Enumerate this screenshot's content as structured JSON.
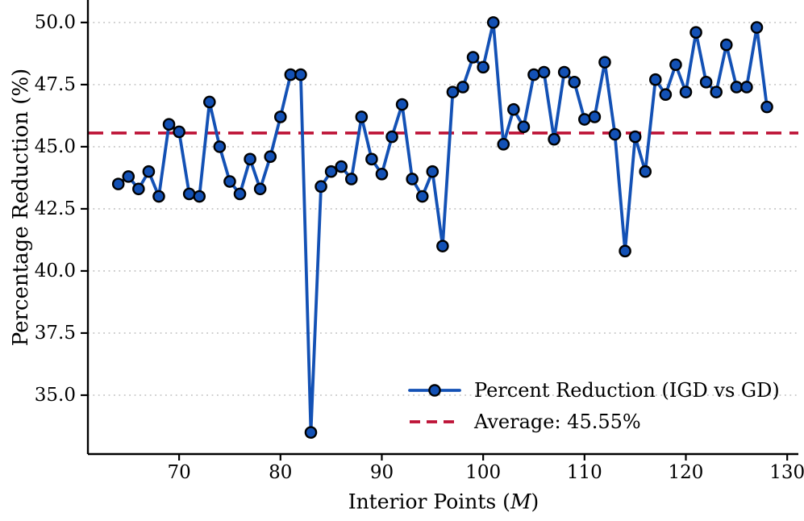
{
  "chart_data": {
    "type": "line",
    "title": "",
    "xlabel": "Interior Points (M)",
    "xlabel_prefix": "Interior Points (",
    "xlabel_var": "M",
    "xlabel_suffix": ")",
    "ylabel": "Percentage Reduction (%)",
    "x": [
      64,
      65,
      66,
      67,
      68,
      69,
      70,
      71,
      72,
      73,
      74,
      75,
      76,
      77,
      78,
      79,
      80,
      81,
      82,
      83,
      84,
      85,
      86,
      87,
      88,
      89,
      90,
      91,
      92,
      93,
      94,
      95,
      96,
      97,
      98,
      99,
      100,
      101,
      102,
      103,
      104,
      105,
      106,
      107,
      108,
      109,
      110,
      111,
      112,
      113,
      114,
      115,
      116,
      117,
      118,
      119,
      120,
      121,
      122,
      123,
      124,
      125,
      126,
      127,
      128
    ],
    "series": [
      {
        "name": "Percent Reduction (IGD vs GD)",
        "values": [
          43.5,
          43.8,
          43.3,
          44.0,
          43.0,
          45.9,
          45.6,
          43.1,
          43.0,
          46.8,
          45.0,
          43.6,
          43.1,
          44.5,
          43.3,
          44.6,
          46.2,
          47.9,
          47.9,
          33.5,
          43.4,
          44.0,
          44.2,
          43.7,
          46.2,
          44.5,
          43.9,
          45.4,
          46.7,
          43.7,
          43.0,
          44.0,
          41.0,
          47.2,
          47.4,
          48.6,
          48.2,
          50.0,
          45.1,
          46.5,
          45.8,
          47.9,
          48.0,
          45.3,
          48.0,
          47.6,
          46.1,
          46.2,
          48.4,
          45.5,
          40.8,
          45.4,
          44.0,
          47.7,
          47.1,
          48.3,
          47.2,
          49.6,
          47.6,
          47.2,
          49.1,
          47.4,
          47.4,
          49.8,
          46.6
        ]
      }
    ],
    "average": {
      "label": "Average: 45.55%",
      "value": 45.55
    },
    "x_ticks": [
      70,
      80,
      90,
      100,
      110,
      120,
      130
    ],
    "x_tick_labels": [
      "70",
      "80",
      "90",
      "100",
      "110",
      "120",
      "130"
    ],
    "y_ticks": [
      35.0,
      37.5,
      40.0,
      42.5,
      45.0,
      47.5,
      50.0
    ],
    "y_tick_labels": [
      "35.0",
      "37.5",
      "40.0",
      "42.5",
      "45.0",
      "47.5",
      "50.0"
    ],
    "xlim": [
      61.0,
      131.1
    ],
    "ylim": [
      32.63,
      50.84
    ],
    "grid": "horizontal-dotted",
    "legend_position": "lower right",
    "colors": {
      "line": "#1351b5",
      "marker_face": "#1351b5",
      "marker_edge": "#000000",
      "average": "#bd1236",
      "grid": "#c8c8c8",
      "axis": "#000000"
    }
  }
}
